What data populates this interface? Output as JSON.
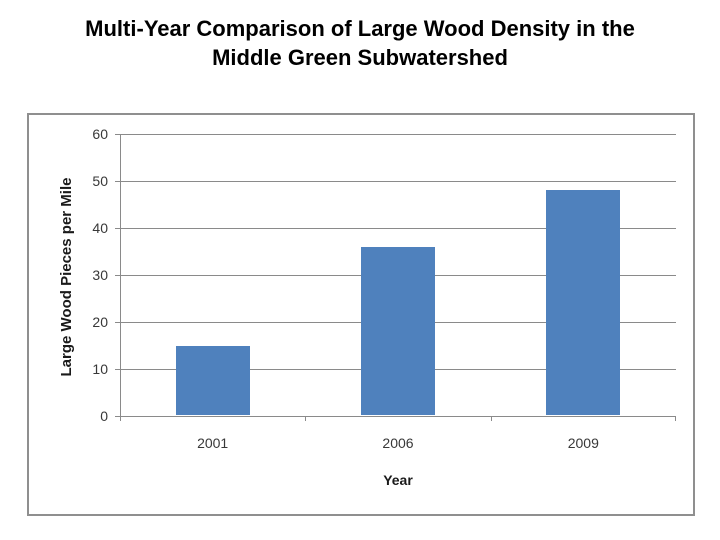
{
  "title": {
    "line1": "Multi-Year Comparison of Large Wood Density in the",
    "line2": "Middle Green Subwatershed"
  },
  "chart_data": {
    "type": "bar",
    "categories": [
      "2001",
      "2006",
      "2009"
    ],
    "values": [
      15,
      36,
      48
    ],
    "title": "",
    "xlabel": "Year",
    "ylabel": "Large Wood Pieces per Mile",
    "ylim": [
      0,
      60
    ],
    "yticks": [
      0,
      10,
      20,
      30,
      40,
      50,
      60
    ],
    "grid": true,
    "legend": false,
    "colors": {
      "bar": "#4f81bd",
      "gridline": "#8a8a8a",
      "axis_text": "#383838",
      "frame_border": "#8f8f8f",
      "background": "#ffffff"
    }
  }
}
